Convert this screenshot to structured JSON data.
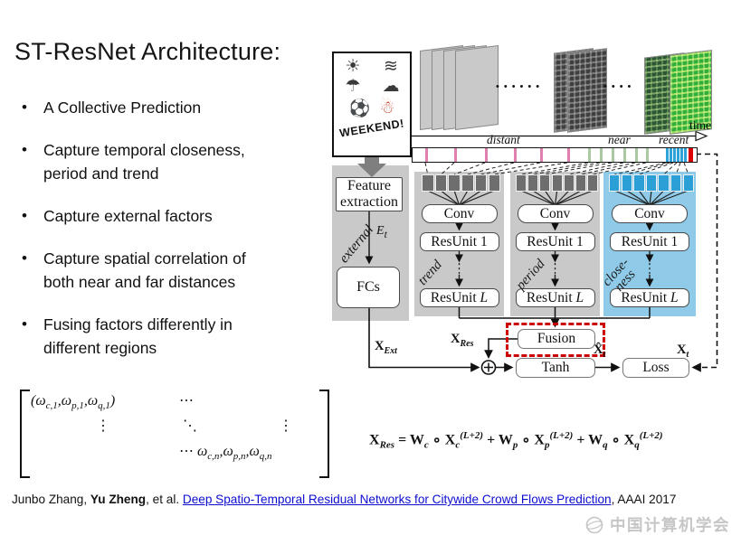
{
  "slide": {
    "title": "ST-ResNet Architecture:",
    "bullets": [
      {
        "lines": [
          "A Collective Prediction"
        ]
      },
      {
        "lines": [
          "Capture temporal closeness,",
          "period and trend"
        ]
      },
      {
        "lines": [
          "Capture external factors"
        ]
      },
      {
        "lines": [
          "Capture spatial correlation of",
          "both near and far distances"
        ]
      },
      {
        "lines": [
          "Fusing factors differently in",
          "different regions"
        ]
      }
    ]
  },
  "weekend_sign": {
    "weather_icons": [
      "☀",
      "≋",
      "☂",
      "☁"
    ],
    "activity_icons": {
      "soccer": "⚽",
      "snowman": "☃"
    },
    "label": "WEEKEND!"
  },
  "timeline": {
    "time_label": "time",
    "distant_label": "distant",
    "near_label": "near",
    "recent_label": "recent",
    "ticks": {
      "pink": [
        470,
        502,
        536,
        568,
        597,
        627
      ],
      "green": [
        650,
        663,
        676,
        689,
        702,
        714
      ],
      "blue": [
        736,
        740,
        744,
        748,
        752,
        756
      ],
      "red": [
        761
      ]
    },
    "colors": {
      "pink": "#e080b0",
      "green": "#aac8a2",
      "blue": "#2ea3d8",
      "red": "#dd0000"
    }
  },
  "external_branch": {
    "feature_extraction_l1": "Feature",
    "feature_extraction_l2": "extraction",
    "et": "*E*_[t]",
    "label": "external",
    "fcs": "FCs",
    "xext": "X_[Ext]"
  },
  "columns": [
    {
      "label": "trend",
      "label2": "",
      "conv": "Conv",
      "res_first": "ResUnit 1",
      "res_last": "ResUnit *L*",
      "squares": 6,
      "theme": "gray"
    },
    {
      "label": "period",
      "label2": "",
      "conv": "Conv",
      "res_first": "ResUnit 1",
      "res_last": "ResUnit *L*",
      "squares": 7,
      "theme": "gray"
    },
    {
      "label": "close-",
      "label2": "ness",
      "conv": "Conv",
      "res_first": "ResUnit 1",
      "res_last": "ResUnit *L*",
      "squares": 7,
      "theme": "blue"
    }
  ],
  "fusion_flow": {
    "fusion": "Fusion",
    "tanh": "Tanh",
    "loss": "Loss",
    "xres": "X_[Res]",
    "xhat": "X̂_[t]",
    "xt": "X_[t]"
  },
  "matrix": {
    "r1c1": "(ω_[c,1],ω_[p,1],ω_[q,1])",
    "r1c2": "⋯",
    "r2c1": "⋮",
    "r2c2": "⋱",
    "r2c3": "⋮",
    "r3c2": "⋯",
    "r3c3": "ω_[c,n],ω_[p,n],ω_[q,n]"
  },
  "formula": "X_[Res] = W_[c] ∘ X_[c]^[(L+2)] + W_[p] ∘ X_[p]^[(L+2)] + W_[q] ∘ X_[q]^[(L+2)]",
  "footer": {
    "authors_prefix": "Junbo Zhang, ",
    "author_bold": "Yu Zheng",
    "middle": ", et al. ",
    "link": "Deep Spatio-Temporal Residual Networks for Citywide Crowd Flows Prediction",
    "suffix": ", AAAI 2017",
    "logo_text": "中国计算机学会"
  }
}
